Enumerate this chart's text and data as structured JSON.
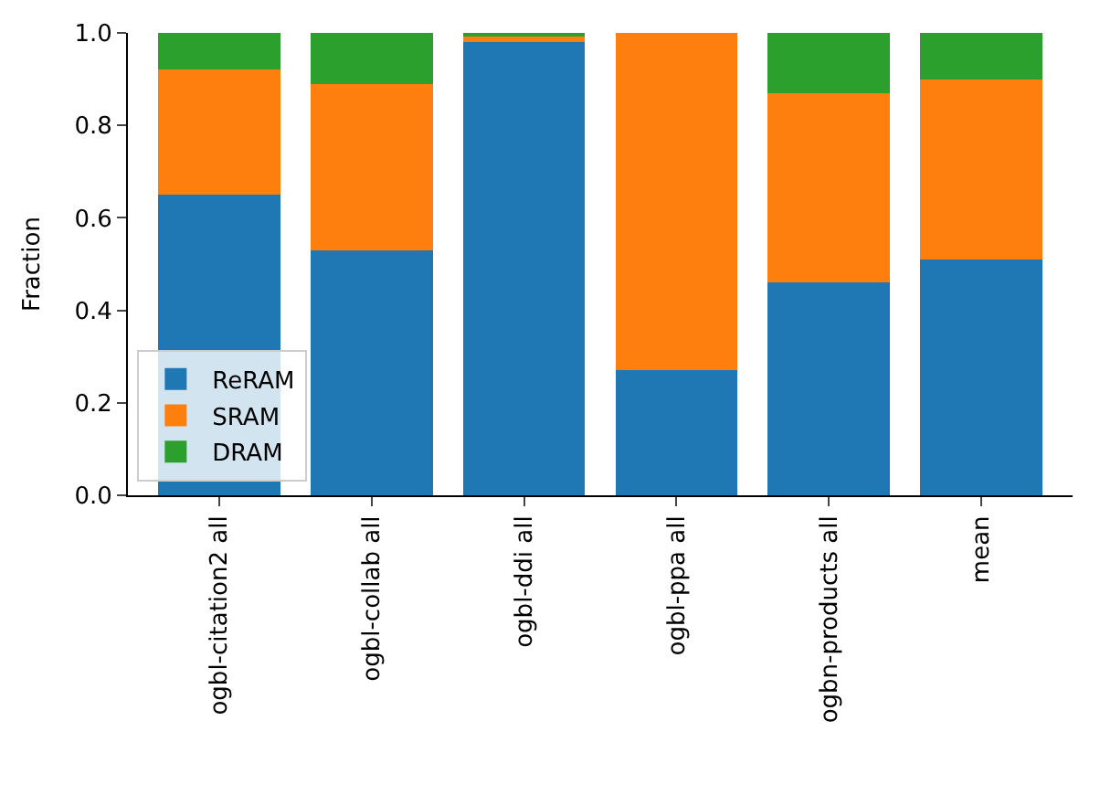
{
  "chart_data": {
    "type": "bar",
    "stacked": true,
    "ylabel": "Fraction",
    "categories": [
      "ogbl-citation2 all",
      "ogbl-collab all",
      "ogbl-ddi all",
      "ogbl-ppa all",
      "ogbn-products all",
      "mean"
    ],
    "series": [
      {
        "name": "ReRAM",
        "color": "#1f77b4",
        "values": [
          0.65,
          0.53,
          0.98,
          0.27,
          0.46,
          0.51
        ]
      },
      {
        "name": "SRAM",
        "color": "#ff7f0e",
        "values": [
          0.27,
          0.36,
          0.015,
          0.73,
          0.41,
          0.39
        ]
      },
      {
        "name": "DRAM",
        "color": "#2ca02c",
        "values": [
          0.08,
          0.11,
          0.005,
          0.0,
          0.13,
          0.1
        ]
      }
    ],
    "ylim": [
      0,
      1.0
    ],
    "yticks": [
      {
        "value": 0,
        "label": "0.0"
      },
      {
        "value": 0.2,
        "label": "0.2"
      },
      {
        "value": 0.4,
        "label": "0.4"
      },
      {
        "value": 0.6,
        "label": "0.6"
      },
      {
        "value": 0.8,
        "label": "0.8"
      },
      {
        "value": 1.0,
        "label": "1.0"
      }
    ],
    "legend": "bottom left"
  }
}
